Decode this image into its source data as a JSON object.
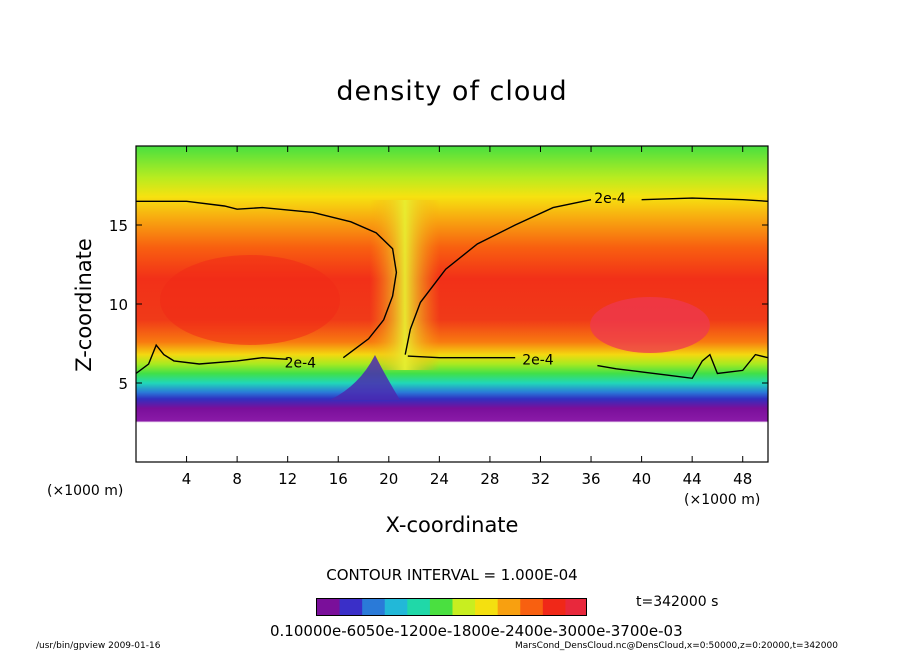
{
  "chart_data": {
    "type": "heatmap",
    "title": "density of cloud",
    "xlabel": "X-coordinate",
    "ylabel": "Z-coordinate",
    "x_unit_left": "(×1000 m)",
    "x_unit_right": "(×1000 m)",
    "xlim": [
      0,
      50
    ],
    "ylim": [
      0,
      20
    ],
    "x_ticks": [
      4,
      8,
      12,
      16,
      20,
      24,
      28,
      32,
      36,
      40,
      44,
      48
    ],
    "y_ticks": [
      5,
      10,
      15
    ],
    "contour_level_label": "2e-4",
    "contour_labels": [
      {
        "text": "2e-4",
        "x": 37.5,
        "z": 16.7
      },
      {
        "text": "2e-4",
        "x": 13.0,
        "z": 6.3
      },
      {
        "text": "2e-4",
        "x": 31.8,
        "z": 6.5
      }
    ],
    "contour_interval": "CONTOUR INTERVAL = 1.000E-04",
    "time": "t=342000 s",
    "colorbar_labels": "0.10000e-6050e-1200e-1800e-2400e-3000e-3700e-03",
    "colorbar_colors": [
      "#7a0f9a",
      "#3a2fc8",
      "#2a7ad8",
      "#22b8d8",
      "#20d8a8",
      "#4ae040",
      "#c8ee20",
      "#f4e010",
      "#f8a010",
      "#f86010",
      "#f02818",
      "#e8283c"
    ],
    "grid": false
  },
  "footer": {
    "left": "/usr/bin/gpview   2009-01-16",
    "right": "MarsCond_DensCloud.nc@DensCloud,x=0:50000,z=0:20000,t=342000"
  }
}
